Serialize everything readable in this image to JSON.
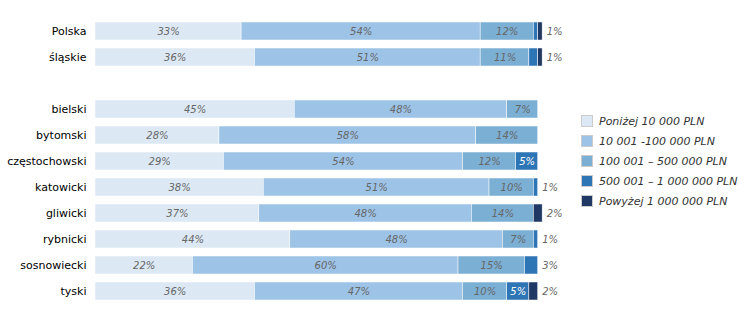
{
  "chart_data": {
    "type": "bar",
    "orientation": "horizontal",
    "stacked": true,
    "categories": [
      "Polska",
      "śląskie",
      null,
      "bielski",
      "bytomski",
      "częstochowski",
      "katowicki",
      "gliwicki",
      "rybnicki",
      "sosnowiecki",
      "tyski"
    ],
    "series": [
      {
        "name": "Poniżej 10 000 PLN",
        "color": "#dce9f5",
        "values": [
          33,
          36,
          0,
          45,
          28,
          29,
          38,
          37,
          44,
          22,
          36
        ],
        "value_labels": [
          "33%",
          "36%",
          null,
          "45%",
          "28%",
          "29%",
          "38%",
          "37%",
          "44%",
          "22%",
          "36%"
        ]
      },
      {
        "name": "10 001 -100 000 PLN",
        "color": "#9dc3e6",
        "values": [
          54,
          51,
          0,
          48,
          58,
          54,
          51,
          48,
          48,
          60,
          47
        ],
        "value_labels": [
          "54%",
          "51%",
          null,
          "48%",
          "58%",
          "54%",
          "51%",
          "48%",
          "48%",
          "60%",
          "47%"
        ]
      },
      {
        "name": "100 001 – 500 000 PLN",
        "color": "#7bafd4",
        "values": [
          12,
          11,
          0,
          7,
          14,
          12,
          10,
          14,
          7,
          15,
          10
        ],
        "value_labels": [
          "12%",
          "11%",
          null,
          "7%",
          "14%",
          "12%",
          "10%",
          "14%",
          "7%",
          "15%",
          "10%"
        ]
      },
      {
        "name": "500 001 – 1 000 000 PLN",
        "color": "#2e75b6",
        "values": [
          1,
          2,
          0,
          0,
          0,
          5,
          1,
          0,
          1,
          3,
          5
        ],
        "value_labels": [
          null,
          null,
          null,
          null,
          null,
          "5%",
          null,
          null,
          null,
          null,
          "5%"
        ]
      },
      {
        "name": "Powyżej 1 000 000 PLN",
        "color": "#1f3864",
        "values": [
          1,
          1,
          0,
          0,
          0,
          0,
          0,
          2,
          0,
          0,
          2
        ],
        "value_labels": [
          null,
          null,
          null,
          null,
          null,
          null,
          null,
          null,
          null,
          null,
          null
        ]
      }
    ],
    "annotations": [
      {
        "text": "1%",
        "category": "Polska"
      },
      {
        "text": "1%",
        "category": "śląskie"
      },
      {
        "text": "1%",
        "category": "katowicki"
      },
      {
        "text": "2%",
        "category": "gliwicki"
      },
      {
        "text": "1%",
        "category": "rybnicki"
      },
      {
        "text": "3%",
        "category": "sosnowiecki"
      },
      {
        "text": "2%",
        "category": "tyski"
      }
    ],
    "xlim": [
      0,
      103
    ],
    "xticks": [],
    "tick_labels": "y",
    "data_labels": true,
    "grid": false,
    "legend": "right"
  }
}
